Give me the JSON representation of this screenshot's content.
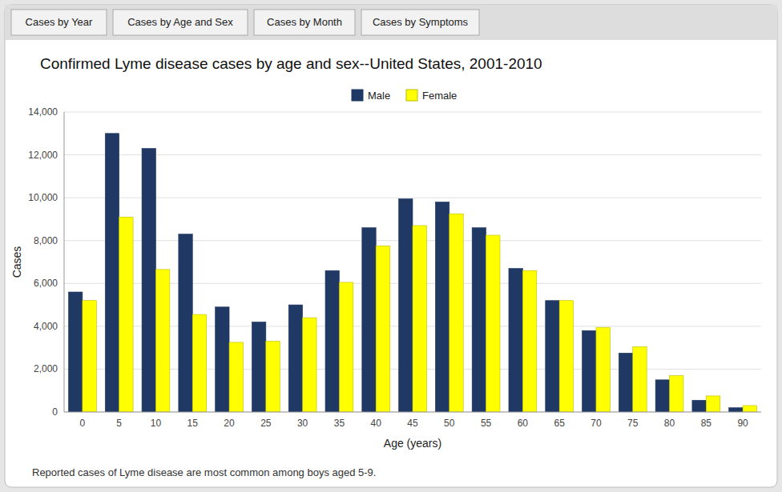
{
  "chart_data": {
    "type": "bar",
    "title": "Confirmed Lyme disease cases by age and sex--United States, 2001-2010",
    "x_label": "Age (years)",
    "y_label": "Cases",
    "footnote": "Reported cases of Lyme disease are most common among boys aged 5-9.",
    "tabs": [
      "Cases by Year",
      "Cases by Age and Sex",
      "Cases by Month",
      "Cases by Symptoms"
    ],
    "categories": [
      "0",
      "5",
      "10",
      "15",
      "20",
      "25",
      "30",
      "35",
      "40",
      "45",
      "50",
      "55",
      "60",
      "65",
      "70",
      "75",
      "80",
      "85",
      "90"
    ],
    "series": [
      {
        "name": "Male",
        "color": "#1F3864",
        "values": [
          5600,
          13000,
          12300,
          8300,
          4900,
          4200,
          5000,
          6600,
          8600,
          9950,
          9800,
          8600,
          6700,
          5200,
          3800,
          2750,
          1500,
          550,
          200
        ]
      },
      {
        "name": "Female",
        "color": "#FFFF00",
        "values": [
          5200,
          9100,
          6650,
          4550,
          3250,
          3300,
          4400,
          6050,
          7750,
          8700,
          9250,
          8250,
          6600,
          5200,
          3950,
          3050,
          1700,
          750,
          300
        ]
      }
    ],
    "ylim": [
      0,
      14000
    ],
    "yticks": [
      0,
      {
        "value": 2000,
        "label": "2,000"
      },
      {
        "value": 4000,
        "label": "4,000"
      },
      {
        "value": 6000,
        "label": "6,000"
      },
      {
        "value": 8000,
        "label": "8,000"
      },
      {
        "value": 10000,
        "label": "10,000"
      },
      {
        "value": 12000,
        "label": "12,000"
      },
      {
        "value": 14000,
        "label": "14,000"
      }
    ],
    "grid": true,
    "legend": "top"
  }
}
